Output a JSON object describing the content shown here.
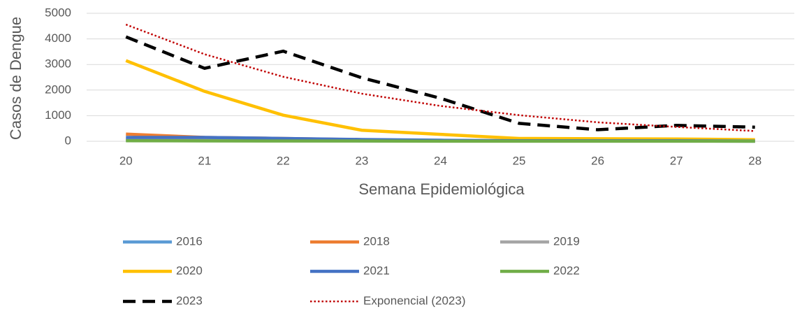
{
  "chart_data": {
    "type": "line",
    "x_label": "Semana Epidemiológica",
    "y_label": "Casos de Dengue",
    "categories": [
      "20",
      "21",
      "22",
      "23",
      "24",
      "25",
      "26",
      "27",
      "28"
    ],
    "ylim": [
      0,
      5000
    ],
    "yticks": [
      0,
      1000,
      2000,
      3000,
      4000,
      5000
    ],
    "grid": true,
    "series": [
      {
        "name": "2016",
        "color": "#5b9bd5",
        "style": "solid",
        "values": [
          40,
          30,
          20,
          15,
          10,
          10,
          10,
          10,
          5
        ]
      },
      {
        "name": "2018",
        "color": "#ed7d31",
        "style": "solid",
        "values": [
          280,
          150,
          110,
          60,
          30,
          20,
          20,
          20,
          10
        ]
      },
      {
        "name": "2019",
        "color": "#a5a5a5",
        "style": "solid",
        "values": [
          60,
          40,
          30,
          20,
          15,
          10,
          10,
          10,
          5
        ]
      },
      {
        "name": "2020",
        "color": "#ffc000",
        "style": "solid",
        "values": [
          3150,
          1950,
          1020,
          430,
          270,
          110,
          100,
          90,
          60
        ]
      },
      {
        "name": "2021",
        "color": "#4472c4",
        "style": "solid",
        "values": [
          150,
          150,
          110,
          70,
          40,
          20,
          20,
          20,
          10
        ]
      },
      {
        "name": "2022",
        "color": "#70ad47",
        "style": "solid",
        "values": [
          20,
          15,
          10,
          10,
          5,
          5,
          5,
          5,
          5
        ]
      },
      {
        "name": "2023",
        "color": "#000000",
        "style": "dashed",
        "values": [
          4080,
          2850,
          3520,
          2480,
          1680,
          700,
          450,
          620,
          550
        ]
      },
      {
        "name": "Exponencial (2023)",
        "color": "#c00000",
        "style": "dotted",
        "values": [
          4560,
          3400,
          2520,
          1860,
          1380,
          1020,
          740,
          560,
          400
        ]
      }
    ]
  }
}
